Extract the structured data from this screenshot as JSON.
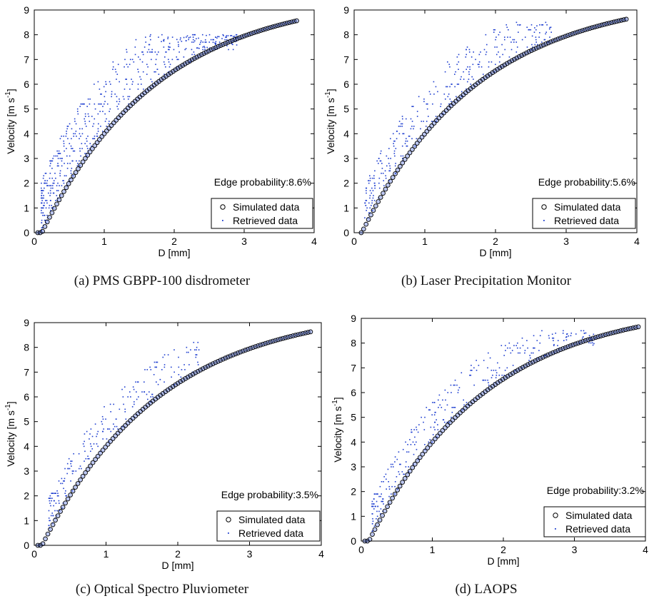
{
  "figure": {
    "panels": [
      {
        "caption": "(a) PMS GBPP-100 disdrometer",
        "edge_label": "Edge probability:8.6%"
      },
      {
        "caption": "(b) Laser Precipitation Monitor",
        "edge_label": "Edge probability:5.6%"
      },
      {
        "caption": "(c) Optical Spectro Pluviometer",
        "edge_label": "Edge probability:3.5%"
      },
      {
        "caption": "(d) LAOPS",
        "edge_label": "Edge probability:3.2%"
      }
    ],
    "legend": {
      "simulated": "Simulated data",
      "retrieved": "Retrieved data"
    },
    "colors": {
      "simulated_marker": "#000000",
      "simulated_fill": "#3f5fd8",
      "retrieved_marker": "#1f3fd0"
    }
  },
  "chart_data": [
    {
      "type": "scatter",
      "xlabel": "D [mm]",
      "ylabel": "Velocity [m s-1]",
      "xlim": [
        0,
        4
      ],
      "ylim": [
        0,
        9
      ],
      "xticks": [
        0,
        1,
        2,
        3,
        4
      ],
      "yticks": [
        0,
        1,
        2,
        3,
        4,
        5,
        6,
        7,
        8,
        9
      ],
      "grid": false,
      "legend_position": "bottom-right",
      "annotation": "Edge probability:8.6%",
      "series": [
        {
          "name": "Simulated data",
          "marker": "circle",
          "x_range": [
            0.05,
            3.75
          ],
          "curve": "terminal-velocity"
        },
        {
          "name": "Retrieved data",
          "marker": "dot",
          "x_range": [
            0.1,
            2.9
          ],
          "y_max_observed": 8.0
        }
      ]
    },
    {
      "type": "scatter",
      "xlabel": "D [mm]",
      "ylabel": "Velocity [m s-1]",
      "xlim": [
        0,
        4
      ],
      "ylim": [
        0,
        9
      ],
      "xticks": [
        0,
        1,
        2,
        3,
        4
      ],
      "yticks": [
        0,
        1,
        2,
        3,
        4,
        5,
        6,
        7,
        8,
        9
      ],
      "grid": false,
      "legend_position": "bottom-right",
      "annotation": "Edge probability:5.6%",
      "series": [
        {
          "name": "Simulated data",
          "marker": "circle",
          "x_range": [
            0.1,
            3.85
          ],
          "curve": "terminal-velocity"
        },
        {
          "name": "Retrieved data",
          "marker": "dot",
          "x_range": [
            0.15,
            2.8
          ],
          "y_max_observed": 8.5
        }
      ]
    },
    {
      "type": "scatter",
      "xlabel": "D [mm]",
      "ylabel": "Velocity [m s-1]",
      "xlim": [
        0,
        4
      ],
      "ylim": [
        0,
        9
      ],
      "xticks": [
        0,
        1,
        2,
        3,
        4
      ],
      "yticks": [
        0,
        1,
        2,
        3,
        4,
        5,
        6,
        7,
        8,
        9
      ],
      "grid": false,
      "legend_position": "bottom-right",
      "annotation": "Edge probability:3.5%",
      "series": [
        {
          "name": "Simulated data",
          "marker": "circle",
          "x_range": [
            0.05,
            3.85
          ],
          "curve": "terminal-velocity"
        },
        {
          "name": "Retrieved data",
          "marker": "dot",
          "x_range": [
            0.2,
            2.3
          ],
          "y_max_observed": 8.2
        }
      ]
    },
    {
      "type": "scatter",
      "xlabel": "D [mm]",
      "ylabel": "Velocity [m s-1]",
      "xlim": [
        0,
        4
      ],
      "ylim": [
        0,
        9
      ],
      "xticks": [
        0,
        1,
        2,
        3,
        4
      ],
      "yticks": [
        0,
        1,
        2,
        3,
        4,
        5,
        6,
        7,
        8,
        9
      ],
      "grid": false,
      "legend_position": "bottom-right",
      "annotation": "Edge probability:3.2%",
      "series": [
        {
          "name": "Simulated data",
          "marker": "circle",
          "x_range": [
            0.05,
            3.9
          ],
          "curve": "terminal-velocity"
        },
        {
          "name": "Retrieved data",
          "marker": "dot",
          "x_range": [
            0.15,
            3.3
          ],
          "y_max_observed": 8.5
        }
      ]
    }
  ]
}
